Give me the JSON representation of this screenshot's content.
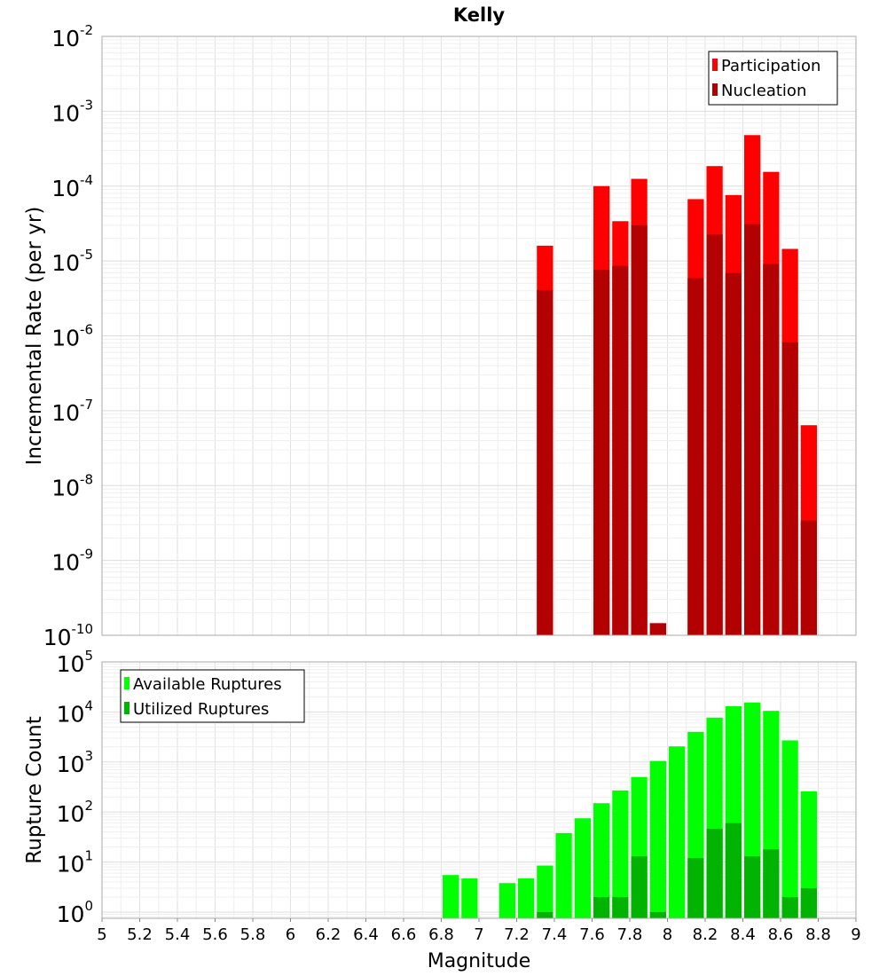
{
  "chart_data": [
    {
      "type": "bar",
      "title": "Kelly",
      "xlabel": "",
      "ylabel": "Incremental Rate (per yr)",
      "yscale": "log",
      "ylim": [
        1e-10,
        0.01
      ],
      "xlim": [
        5,
        9
      ],
      "grid": true,
      "legend": "top-right",
      "y_tick_labels": [
        {
          "base": "10",
          "exp": "-10"
        },
        {
          "base": "10",
          "exp": "-9"
        },
        {
          "base": "10",
          "exp": "-8"
        },
        {
          "base": "10",
          "exp": "-7"
        },
        {
          "base": "10",
          "exp": "-6"
        },
        {
          "base": "10",
          "exp": "-5"
        },
        {
          "base": "10",
          "exp": "-4"
        },
        {
          "base": "10",
          "exp": "-3"
        },
        {
          "base": "10",
          "exp": "-2"
        }
      ],
      "series": [
        {
          "name": "Participation",
          "color": "#ff0000",
          "x": [
            7.35,
            7.65,
            7.75,
            7.85,
            7.95,
            8.15,
            8.25,
            8.35,
            8.45,
            8.55,
            8.65,
            8.75
          ],
          "values": [
            1.6e-05,
            0.0001,
            3.4e-05,
            0.000125,
            1.45e-10,
            6.7e-05,
            0.000185,
            7.6e-05,
            0.00048,
            0.000155,
            1.45e-05,
            6.4e-08
          ]
        },
        {
          "name": "Nucleation",
          "color": "#b30000",
          "x": [
            7.35,
            7.65,
            7.75,
            7.85,
            7.95,
            8.15,
            8.25,
            8.35,
            8.45,
            8.55,
            8.65,
            8.75
          ],
          "values": [
            4.1e-06,
            7.6e-06,
            8.6e-06,
            3e-05,
            1.45e-10,
            5.9e-06,
            2.25e-05,
            6.9e-06,
            3.1e-05,
            9.1e-06,
            8.2e-07,
            3.4e-09
          ]
        }
      ]
    },
    {
      "type": "bar",
      "title": "",
      "xlabel": "Magnitude",
      "ylabel": "Rupture Count",
      "yscale": "log",
      "ylim": [
        0.75,
        100000.0
      ],
      "xlim": [
        5,
        9
      ],
      "grid": true,
      "legend": "top-left",
      "x_ticks": [
        "5",
        "5.2",
        "5.4",
        "5.6",
        "5.8",
        "6",
        "6.2",
        "6.4",
        "6.6",
        "6.8",
        "7",
        "7.2",
        "7.4",
        "7.6",
        "7.8",
        "8",
        "8.2",
        "8.4",
        "8.6",
        "8.8",
        "9"
      ],
      "y_tick_labels": [
        {
          "base": "10",
          "exp": "0"
        },
        {
          "base": "10",
          "exp": "1"
        },
        {
          "base": "10",
          "exp": "2"
        },
        {
          "base": "10",
          "exp": "3"
        },
        {
          "base": "10",
          "exp": "4"
        },
        {
          "base": "10",
          "exp": "5"
        }
      ],
      "series": [
        {
          "name": "Available Ruptures",
          "color": "#00ff00",
          "x": [
            6.85,
            6.95,
            7.15,
            7.25,
            7.35,
            7.45,
            7.55,
            7.65,
            7.75,
            7.85,
            7.95,
            8.05,
            8.15,
            8.25,
            8.35,
            8.45,
            8.55,
            8.65,
            8.75
          ],
          "values": [
            5.5,
            4.7,
            3.8,
            4.7,
            8.5,
            38,
            75,
            150,
            270,
            500,
            1050,
            2050,
            4000,
            7700,
            13000,
            15500,
            10500,
            2700,
            260
          ]
        },
        {
          "name": "Utilized Ruptures",
          "color": "#00b300",
          "x": [
            7.35,
            7.65,
            7.75,
            7.85,
            7.95,
            8.15,
            8.25,
            8.35,
            8.45,
            8.55,
            8.65,
            8.75
          ],
          "values": [
            1,
            2,
            2,
            13,
            1,
            12,
            46,
            60,
            13,
            18,
            2,
            3
          ]
        }
      ]
    }
  ]
}
